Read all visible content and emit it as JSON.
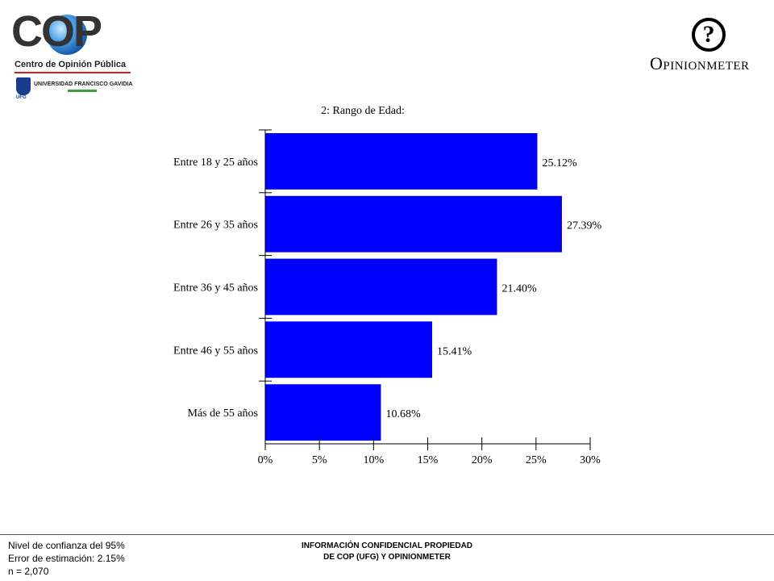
{
  "logos": {
    "cop": {
      "wordmark": "COP",
      "subtitle": "Centro de Opinión Pública",
      "institution": "UNIVERSIDAD FRANCISCO GAVIDIA",
      "institution_short": "UFG"
    },
    "opinionmeter": {
      "symbol": "?",
      "wordmark": "Opinionmeter"
    }
  },
  "colors": {
    "bar": "#0000ff",
    "axis": "#000000",
    "cop_accent": "#d32020"
  },
  "chart_data": {
    "type": "bar",
    "orientation": "horizontal",
    "title": "2: Rango de Edad:",
    "categories": [
      "Entre 18 y 25 años",
      "Entre 26 y 35 años",
      "Entre 36 y 45 años",
      "Entre 46 y 55 años",
      "Más de 55 años"
    ],
    "values": [
      25.12,
      27.39,
      21.4,
      15.41,
      10.68
    ],
    "value_labels": [
      "25.12%",
      "27.39%",
      "21.40%",
      "15.41%",
      "10.68%"
    ],
    "xlim": [
      0,
      30
    ],
    "xticks": [
      0,
      5,
      10,
      15,
      20,
      25,
      30
    ],
    "xtick_labels": [
      "0%",
      "5%",
      "10%",
      "15%",
      "20%",
      "25%",
      "30%"
    ],
    "grid": false,
    "legend": "none"
  },
  "footer": {
    "left": [
      "Nivel de confianza del 95%",
      "Error de estimación: 2.15%",
      "n = 2,070"
    ],
    "center": [
      "INFORMACIÓN CONFIDENCIAL PROPIEDAD",
      "DE COP (UFG) Y OPINIONMETER"
    ]
  }
}
